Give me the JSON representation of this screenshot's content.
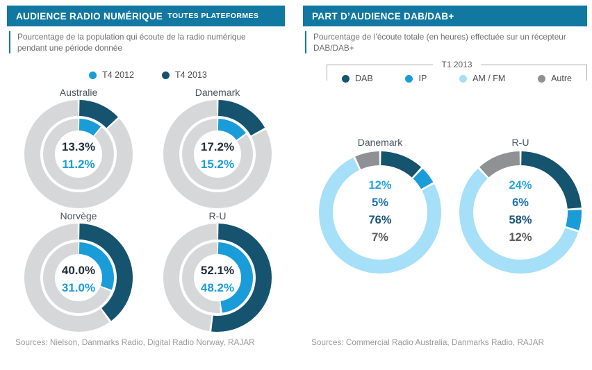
{
  "colors": {
    "header_bg": "#1178a2",
    "dark_blue": "#15536f",
    "bright_blue": "#1a9cd9",
    "light_blue": "#a6dff8",
    "gray_segment": "#8f9194",
    "ring_gray": "#d6d7d8",
    "title_slate": "#47525d",
    "subtitle_gray": "#6d6e71",
    "sources_gray": "#97999b",
    "center_values_left": [
      "#1f2e3c",
      "#1a9cd9"
    ],
    "center_values_right": [
      "#25a5e0",
      "#1b74b8",
      "#175478",
      "#58595b"
    ]
  },
  "left_panel": {
    "title": "AUDIENCE RADIO NUMÉRIQUE",
    "title_suffix": "TOUTES PLATEFORMES",
    "subtitle": "Pourcentage de la population qui écoute de la radio numérique pendant une période donnée",
    "legend": [
      {
        "label": "T4 2012",
        "color": "#1a9cd9"
      },
      {
        "label": "T4 2013",
        "color": "#15536f"
      }
    ],
    "sources": "Sources: Nielson, Danmarks Radio, Digital Radio Norway, RAJAR"
  },
  "right_panel": {
    "title": "PART D’AUDIENCE DAB/DAB+",
    "subtitle": "Pourcentage de l’écoute totale (en heures) effectuée sur un récepteur DAB/DAB+",
    "legend_title": "T1 2013",
    "legend": [
      {
        "label": "DAB",
        "color": "#15536f"
      },
      {
        "label": "IP",
        "color": "#1a9cd9"
      },
      {
        "label": "AM / FM",
        "color": "#a6dff8"
      },
      {
        "label": "Autre",
        "color": "#8f9194"
      }
    ],
    "sources": "Sources: Commercial Radio Australia, Danmarks Radio, RAJAR"
  },
  "chart_data": [
    {
      "type": "donut",
      "variant": "double-ring",
      "title": "AUDIENCE RADIO NUMÉRIQUE — TOUTES PLATEFORMES",
      "series": [
        "T4 2013 (anneau extérieur)",
        "T4 2012 (anneau intérieur)"
      ],
      "unit": "%",
      "charts": [
        {
          "name": "Australie",
          "t4_2013": 13.3,
          "t4_2012": 11.2,
          "labels": [
            "13.3%",
            "11.2%"
          ]
        },
        {
          "name": "Danemark",
          "t4_2013": 17.2,
          "t4_2012": 15.2,
          "labels": [
            "17.2%",
            "15.2%"
          ]
        },
        {
          "name": "Norvège",
          "t4_2013": 40.0,
          "t4_2012": 31.0,
          "labels": [
            "40.0%",
            "31.0%"
          ]
        },
        {
          "name": "R-U",
          "t4_2013": 52.1,
          "t4_2012": 48.2,
          "labels": [
            "52.1%",
            "48.2%"
          ]
        }
      ]
    },
    {
      "type": "donut",
      "variant": "single-ring",
      "title": "PART D’AUDIENCE DAB/DAB+ — T1 2013",
      "categories": [
        "DAB",
        "IP",
        "AM / FM",
        "Autre"
      ],
      "unit": "%",
      "charts": [
        {
          "name": "Danemark",
          "values": [
            12,
            5,
            76,
            7
          ],
          "labels": [
            "12%",
            "5%",
            "76%",
            "7%"
          ]
        },
        {
          "name": "R-U",
          "values": [
            24,
            6,
            58,
            12
          ],
          "labels": [
            "24%",
            "6%",
            "58%",
            "12%"
          ]
        }
      ]
    }
  ]
}
